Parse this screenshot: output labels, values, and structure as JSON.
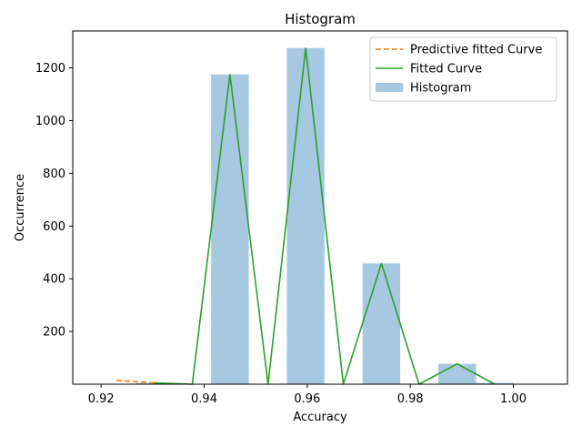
{
  "chart_data": {
    "type": "bar",
    "title": "Histogram",
    "xlabel": "Accuracy",
    "ylabel": "Occurrence",
    "xlim": [
      0.9145,
      1.0105
    ],
    "ylim": [
      0,
      1340
    ],
    "x_ticks": [
      0.92,
      0.94,
      0.96,
      0.98,
      1.0
    ],
    "x_tick_labels": [
      "0.92",
      "0.94",
      "0.96",
      "0.98",
      "1.00"
    ],
    "y_ticks": [
      200,
      400,
      600,
      800,
      1000,
      1200
    ],
    "y_tick_labels": [
      "200",
      "400",
      "600",
      "800",
      "1000",
      "1200"
    ],
    "grid": false,
    "legend_position": "top-right",
    "histogram": {
      "name": "Histogram",
      "color": "#a6c8e0",
      "bar_width": 0.0073,
      "bins": [
        {
          "x": 0.9304,
          "value": 5
        },
        {
          "x": 0.945,
          "value": 1175
        },
        {
          "x": 0.9597,
          "value": 1275
        },
        {
          "x": 0.9744,
          "value": 458
        },
        {
          "x": 0.9891,
          "value": 77
        },
        {
          "x": 0.9964,
          "value": 5
        }
      ]
    },
    "series": [
      {
        "name": "Predictive fitted Curve",
        "color": "#ff7f0e",
        "style": "dashed",
        "x": [
          0.923,
          0.9304
        ],
        "y": [
          15,
          5
        ]
      },
      {
        "name": "Fitted Curve",
        "color": "#2ca02c",
        "style": "solid",
        "x": [
          0.9304,
          0.9377,
          0.945,
          0.9524,
          0.9597,
          0.967,
          0.9744,
          0.9817,
          0.9891,
          0.9964
        ],
        "y": [
          5,
          0,
          1175,
          0,
          1275,
          0,
          458,
          0,
          77,
          0
        ]
      }
    ],
    "legend": [
      {
        "label": "Predictive fitted Curve",
        "kind": "line",
        "color": "#ff7f0e",
        "style": "dashed"
      },
      {
        "label": "Fitted Curve",
        "kind": "line",
        "color": "#2ca02c",
        "style": "solid"
      },
      {
        "label": "Histogram",
        "kind": "patch",
        "color": "#a6c8e0"
      }
    ]
  }
}
